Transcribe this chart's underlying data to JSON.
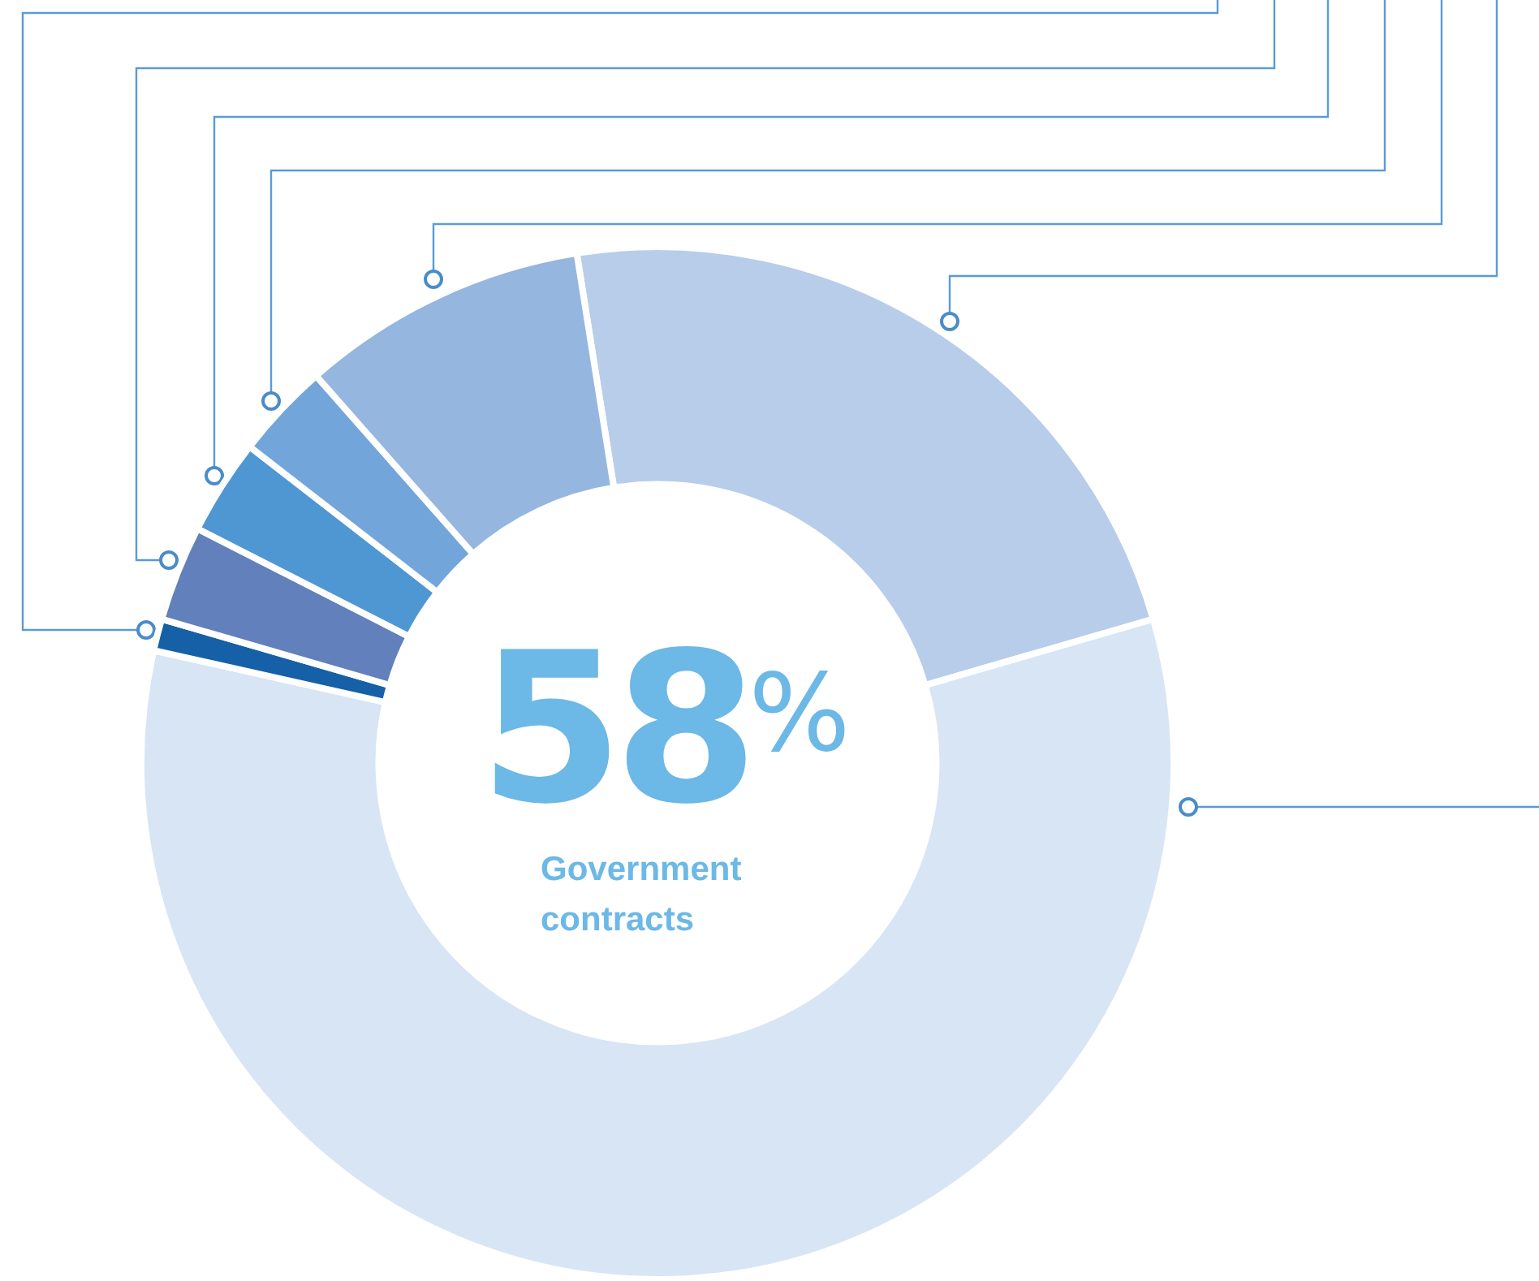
{
  "chart_data": {
    "type": "donut",
    "categories": [
      null,
      "Government contracts",
      null,
      null,
      null,
      null,
      null
    ],
    "values": [
      23,
      58,
      1,
      3,
      3,
      3,
      9
    ],
    "colors": [
      "#b8cdea",
      "#d8e5f4",
      "#1560a6",
      "#6280bb",
      "#4f97d3",
      "#72a6da",
      "#95b6df"
    ],
    "value_labels": [
      null,
      "58$^{%}$",
      null,
      null,
      null,
      null,
      null
    ],
    "legend": false
  }
}
